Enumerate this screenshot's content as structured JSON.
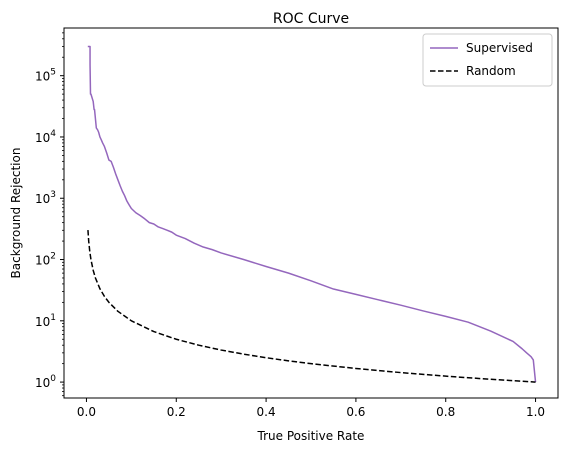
{
  "chart_data": {
    "type": "line",
    "title": "ROC Curve",
    "xlabel": "True Positive Rate",
    "ylabel": "Background Rejection",
    "xlim": [
      -0.05,
      1.05
    ],
    "ylim": [
      0.55,
      600000
    ],
    "yscale": "log",
    "grid": false,
    "legend_position": "top-right",
    "x_ticks": [
      0.0,
      0.2,
      0.4,
      0.6,
      0.8,
      1.0
    ],
    "x_tick_labels": [
      "0.0",
      "0.2",
      "0.4",
      "0.6",
      "0.8",
      "1.0"
    ],
    "y_ticks": [
      1,
      10,
      100,
      1000,
      10000,
      100000
    ],
    "y_tick_labels": [
      {
        "base": "10",
        "exp": "0"
      },
      {
        "base": "10",
        "exp": "1"
      },
      {
        "base": "10",
        "exp": "2"
      },
      {
        "base": "10",
        "exp": "3"
      },
      {
        "base": "10",
        "exp": "4"
      },
      {
        "base": "10",
        "exp": "5"
      }
    ],
    "series": [
      {
        "name": "Supervised",
        "color": "#9467bd",
        "style": "solid",
        "x": [
          0.003,
          0.008,
          0.008,
          0.009,
          0.01,
          0.015,
          0.017,
          0.018,
          0.022,
          0.025,
          0.027,
          0.03,
          0.033,
          0.036,
          0.04,
          0.045,
          0.05,
          0.055,
          0.06,
          0.065,
          0.07,
          0.075,
          0.08,
          0.085,
          0.09,
          0.095,
          0.1,
          0.11,
          0.12,
          0.13,
          0.14,
          0.15,
          0.16,
          0.17,
          0.18,
          0.19,
          0.2,
          0.22,
          0.24,
          0.26,
          0.28,
          0.3,
          0.35,
          0.4,
          0.45,
          0.5,
          0.55,
          0.6,
          0.65,
          0.7,
          0.75,
          0.8,
          0.85,
          0.9,
          0.95,
          0.97,
          0.98,
          0.99,
          0.995,
          1.0
        ],
        "y": [
          300000,
          300000,
          150000,
          50000,
          50000,
          38000,
          28000,
          28000,
          14000,
          13000,
          12000,
          10000,
          9000,
          8000,
          7000,
          5500,
          4200,
          4000,
          3200,
          2500,
          2000,
          1600,
          1300,
          1100,
          900,
          780,
          680,
          580,
          520,
          460,
          400,
          380,
          340,
          320,
          300,
          280,
          250,
          220,
          185,
          160,
          145,
          128,
          100,
          77,
          60,
          45,
          33,
          27,
          22,
          18,
          14.5,
          11.8,
          9.5,
          6.8,
          4.6,
          3.5,
          3.0,
          2.6,
          2.3,
          1.0
        ]
      },
      {
        "name": "Random",
        "color": "#000000",
        "style": "dashed",
        "x": [
          0.0033,
          0.005,
          0.0075,
          0.01,
          0.015,
          0.02,
          0.03,
          0.04,
          0.05,
          0.07,
          0.1,
          0.15,
          0.2,
          0.25,
          0.3,
          0.35,
          0.4,
          0.45,
          0.5,
          0.6,
          0.7,
          0.8,
          0.9,
          1.0
        ],
        "y": [
          303,
          200,
          133.3,
          100,
          66.7,
          50,
          33.3,
          25,
          20,
          14.29,
          10,
          6.67,
          5,
          4,
          3.33,
          2.86,
          2.5,
          2.22,
          2,
          1.667,
          1.429,
          1.25,
          1.111,
          1.0
        ]
      }
    ]
  }
}
